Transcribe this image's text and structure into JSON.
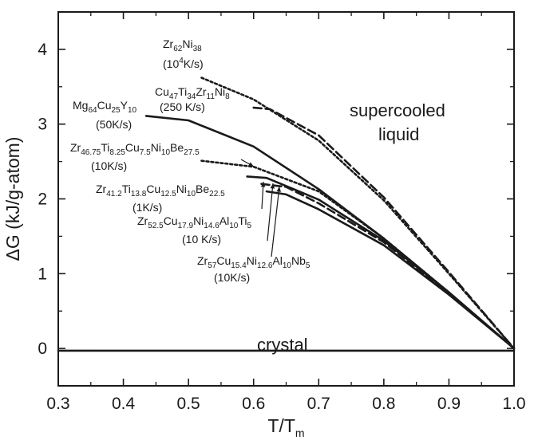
{
  "chart_data": {
    "type": "line",
    "xlabel": {
      "base": "T/T",
      "sub": "m"
    },
    "ylabel": "ΔG (kJ/g-atom)",
    "xlim": [
      0.3,
      1.0
    ],
    "ylim": [
      -0.5,
      4.5
    ],
    "x_ticks": [
      "0.3",
      "0.4",
      "0.5",
      "0.6",
      "0.7",
      "0.8",
      "0.9",
      "1.0"
    ],
    "y_ticks": [
      "0",
      "1",
      "2",
      "3",
      "4"
    ],
    "grid": false,
    "series": [
      {
        "style": "dotted",
        "label_parts": [
          [
            "Zr",
            ""
          ],
          [
            "62",
            "sub"
          ],
          [
            "Ni",
            ""
          ],
          [
            "38",
            "sub"
          ]
        ],
        "rate_parts": [
          [
            "(10",
            ""
          ],
          [
            "4",
            "sup"
          ],
          [
            "K/s)",
            ""
          ]
        ],
        "x": [
          0.52,
          0.6,
          0.7,
          0.8,
          0.9,
          1.0
        ],
        "y": [
          3.62,
          3.33,
          2.78,
          1.98,
          1.0,
          0.0
        ]
      },
      {
        "style": "dashed",
        "label_parts": [
          [
            "Cu",
            ""
          ],
          [
            "47",
            "sub"
          ],
          [
            "Ti",
            ""
          ],
          [
            "34",
            "sub"
          ],
          [
            "Zr",
            ""
          ],
          [
            "11",
            "sub"
          ],
          [
            "Ni",
            ""
          ],
          [
            "8",
            "sub"
          ]
        ],
        "rate_parts": [
          [
            "(250 K/s)",
            ""
          ]
        ],
        "x": [
          0.6,
          0.625,
          0.7,
          0.8,
          0.9,
          1.0
        ],
        "y": [
          3.22,
          3.2,
          2.85,
          2.02,
          1.02,
          0.0
        ]
      },
      {
        "style": "solid",
        "label_parts": [
          [
            "Mg",
            ""
          ],
          [
            "64",
            "sub"
          ],
          [
            "Cu",
            ""
          ],
          [
            "25",
            "sub"
          ],
          [
            "Y",
            ""
          ],
          [
            "10",
            "sub"
          ]
        ],
        "rate_parts": [
          [
            "(50K/s)",
            ""
          ]
        ],
        "x": [
          0.435,
          0.5,
          0.6,
          0.7,
          0.8,
          0.9,
          1.0
        ],
        "y": [
          3.11,
          3.05,
          2.7,
          2.13,
          1.47,
          0.75,
          0.0
        ]
      },
      {
        "style": "dotted",
        "label_parts": [
          [
            "Zr",
            ""
          ],
          [
            "46.75",
            "sub"
          ],
          [
            "Ti",
            ""
          ],
          [
            "8.25",
            "sub"
          ],
          [
            "Cu",
            ""
          ],
          [
            "7.5",
            "sub"
          ],
          [
            "Ni",
            ""
          ],
          [
            "10",
            "sub"
          ],
          [
            "Be",
            ""
          ],
          [
            "27.5",
            "sub"
          ]
        ],
        "rate_parts": [
          [
            "(10K/s)",
            ""
          ]
        ],
        "x": [
          0.52,
          0.6,
          0.7,
          0.8,
          0.9,
          1.0
        ],
        "y": [
          2.51,
          2.43,
          2.1,
          1.47,
          0.75,
          0.0
        ]
      },
      {
        "style": "solid",
        "label_parts": [
          [
            "Zr",
            ""
          ],
          [
            "41.2",
            "sub"
          ],
          [
            "Ti",
            ""
          ],
          [
            "13.8",
            "sub"
          ],
          [
            "Cu",
            ""
          ],
          [
            "12.5",
            "sub"
          ],
          [
            "Ni",
            ""
          ],
          [
            "10",
            "sub"
          ],
          [
            "Be",
            ""
          ],
          [
            "22.5",
            "sub"
          ]
        ],
        "rate_parts": [
          [
            "(1K/s)",
            ""
          ]
        ],
        "x": [
          0.59,
          0.62,
          0.7,
          0.8,
          0.9,
          1.0
        ],
        "y": [
          2.3,
          2.28,
          1.99,
          1.44,
          0.75,
          0.0
        ]
      },
      {
        "style": "dashed",
        "label_parts": [
          [
            "Zr",
            ""
          ],
          [
            "52.5",
            "sub"
          ],
          [
            "Cu",
            ""
          ],
          [
            "17.9",
            "sub"
          ],
          [
            "Ni",
            ""
          ],
          [
            "14.6",
            "sub"
          ],
          [
            "Al",
            ""
          ],
          [
            "10",
            "sub"
          ],
          [
            "Ti",
            ""
          ],
          [
            "5",
            "sub"
          ]
        ],
        "rate_parts": [
          [
            "(10 K/s)",
            ""
          ]
        ],
        "x": [
          0.612,
          0.65,
          0.7,
          0.8,
          0.9,
          1.0
        ],
        "y": [
          2.2,
          2.16,
          1.94,
          1.42,
          0.74,
          0.0
        ]
      },
      {
        "style": "solid",
        "label_parts": [
          [
            "Zr",
            ""
          ],
          [
            "57",
            "sub"
          ],
          [
            "Cu",
            ""
          ],
          [
            "15.4",
            "sub"
          ],
          [
            "Ni",
            ""
          ],
          [
            "12.6",
            "sub"
          ],
          [
            "Al",
            ""
          ],
          [
            "10",
            "sub"
          ],
          [
            "Nb",
            ""
          ],
          [
            "5",
            "sub"
          ]
        ],
        "rate_parts": [
          [
            "(10K/s)",
            ""
          ]
        ],
        "x": [
          0.62,
          0.65,
          0.7,
          0.8,
          0.9,
          1.0
        ],
        "y": [
          2.1,
          2.06,
          1.86,
          1.38,
          0.72,
          0.0
        ]
      },
      {
        "style": "solid",
        "label_parts": [],
        "rate_parts": [],
        "x": [
          0.3,
          1.0
        ],
        "y": [
          -0.03,
          -0.03
        ]
      }
    ],
    "annotations": {
      "supercooled": "supercooled",
      "liquid": "liquid",
      "crystal": "crystal"
    }
  }
}
